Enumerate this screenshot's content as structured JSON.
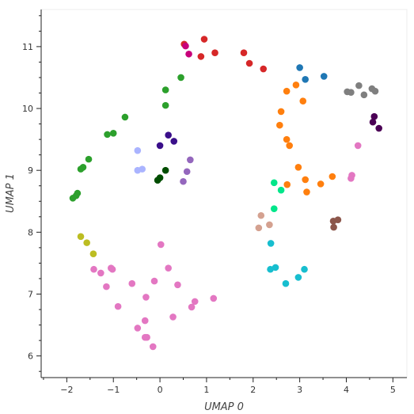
{
  "chart_data": {
    "type": "scatter",
    "title": "",
    "xlabel": "UMAP 0",
    "ylabel": "UMAP 1",
    "xlim": [
      -2.55,
      5.3
    ],
    "ylim": [
      5.65,
      11.6
    ],
    "x_ticks": [
      -2,
      -1,
      0,
      1,
      2,
      3,
      4,
      5
    ],
    "y_ticks": [
      6,
      7,
      8,
      9,
      10,
      11
    ],
    "x_tick_labels": [
      "−2",
      "−1",
      "0",
      "1",
      "2",
      "3",
      "4",
      "5"
    ],
    "y_tick_labels": [
      "6",
      "7",
      "8",
      "9",
      "10",
      "11"
    ],
    "grid": false,
    "legend": false,
    "series": [
      {
        "color": "#d62728",
        "points": [
          [
            0.52,
            11.04
          ],
          [
            0.95,
            11.12
          ],
          [
            1.18,
            10.9
          ],
          [
            0.88,
            10.84
          ],
          [
            1.8,
            10.9
          ],
          [
            1.92,
            10.73
          ],
          [
            2.22,
            10.64
          ]
        ]
      },
      {
        "color": "#c7007a",
        "points": [
          [
            0.55,
            11.01
          ],
          [
            0.62,
            10.88
          ]
        ]
      },
      {
        "color": "#2ca02c",
        "points": [
          [
            0.45,
            10.5
          ],
          [
            0.12,
            10.3
          ],
          [
            0.12,
            10.05
          ],
          [
            -0.75,
            9.86
          ],
          [
            -1.0,
            9.6
          ],
          [
            -1.13,
            9.58
          ],
          [
            -1.53,
            9.18
          ],
          [
            -1.65,
            9.05
          ],
          [
            -1.7,
            9.02
          ],
          [
            -1.77,
            8.63
          ],
          [
            -1.8,
            8.59
          ],
          [
            -1.87,
            8.55
          ]
        ]
      },
      {
        "color": "#1f77b4",
        "points": [
          [
            3.0,
            10.66
          ],
          [
            3.12,
            10.47
          ],
          [
            3.52,
            10.52
          ]
        ]
      },
      {
        "color": "#ff7f0e",
        "points": [
          [
            2.92,
            10.38
          ],
          [
            2.72,
            10.28
          ],
          [
            3.07,
            10.12
          ],
          [
            2.6,
            9.95
          ],
          [
            2.57,
            9.73
          ],
          [
            2.72,
            9.5
          ],
          [
            2.78,
            9.4
          ],
          [
            2.97,
            9.05
          ],
          [
            2.73,
            8.77
          ],
          [
            3.12,
            8.85
          ],
          [
            3.45,
            8.78
          ],
          [
            3.7,
            8.9
          ],
          [
            3.15,
            8.65
          ]
        ]
      },
      {
        "color": "#7f7f7f",
        "points": [
          [
            4.27,
            10.37
          ],
          [
            4.02,
            10.27
          ],
          [
            4.1,
            10.26
          ],
          [
            4.38,
            10.22
          ],
          [
            4.55,
            10.32
          ],
          [
            4.62,
            10.28
          ]
        ]
      },
      {
        "color": "#4b0055",
        "points": [
          [
            4.6,
            9.87
          ],
          [
            4.57,
            9.78
          ],
          [
            4.7,
            9.68
          ]
        ]
      },
      {
        "color": "#3a0f8a",
        "points": [
          [
            0.18,
            9.57
          ],
          [
            0.3,
            9.47
          ],
          [
            0.0,
            9.4
          ]
        ]
      },
      {
        "color": "#aab4ff",
        "points": [
          [
            -0.48,
            9.32
          ],
          [
            -0.48,
            9.0
          ],
          [
            -0.38,
            9.02
          ]
        ]
      },
      {
        "color": "#004d00",
        "points": [
          [
            0.12,
            9.0
          ],
          [
            0.0,
            8.88
          ],
          [
            -0.05,
            8.84
          ]
        ]
      },
      {
        "color": "#9467bd",
        "points": [
          [
            0.65,
            9.17
          ],
          [
            0.58,
            8.98
          ],
          [
            0.5,
            8.82
          ]
        ]
      },
      {
        "color": "#00e68a",
        "points": [
          [
            2.45,
            8.8
          ],
          [
            2.6,
            8.68
          ],
          [
            2.45,
            8.38
          ]
        ]
      },
      {
        "color": "#d4a190",
        "points": [
          [
            2.17,
            8.27
          ],
          [
            2.35,
            8.12
          ],
          [
            2.12,
            8.07
          ]
        ]
      },
      {
        "color": "#8c564b",
        "points": [
          [
            3.72,
            8.18
          ],
          [
            3.82,
            8.2
          ],
          [
            3.73,
            8.08
          ]
        ]
      },
      {
        "color": "#e377c2",
        "points": [
          [
            4.25,
            9.4
          ],
          [
            4.12,
            8.92
          ],
          [
            4.1,
            8.87
          ],
          [
            0.02,
            7.8
          ],
          [
            0.18,
            7.42
          ],
          [
            -1.02,
            7.4
          ],
          [
            -1.05,
            7.42
          ],
          [
            -1.42,
            7.4
          ],
          [
            -1.27,
            7.34
          ],
          [
            -1.15,
            7.12
          ],
          [
            -0.6,
            7.17
          ],
          [
            -0.12,
            7.21
          ],
          [
            0.38,
            7.15
          ],
          [
            -0.3,
            6.95
          ],
          [
            1.15,
            6.93
          ],
          [
            -0.9,
            6.8
          ],
          [
            0.75,
            6.88
          ],
          [
            0.68,
            6.79
          ],
          [
            0.28,
            6.63
          ],
          [
            -0.32,
            6.57
          ],
          [
            -0.48,
            6.45
          ],
          [
            -0.28,
            6.3
          ],
          [
            -0.32,
            6.3
          ],
          [
            -0.15,
            6.15
          ]
        ]
      },
      {
        "color": "#bcbd22",
        "points": [
          [
            -1.7,
            7.93
          ],
          [
            -1.57,
            7.83
          ],
          [
            -1.43,
            7.65
          ]
        ]
      },
      {
        "color": "#17becf",
        "points": [
          [
            2.38,
            7.82
          ],
          [
            2.48,
            7.43
          ],
          [
            2.37,
            7.4
          ],
          [
            3.1,
            7.4
          ],
          [
            2.97,
            7.27
          ],
          [
            2.7,
            7.17
          ]
        ]
      }
    ]
  }
}
